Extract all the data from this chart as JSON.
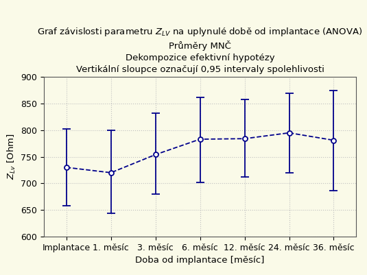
{
  "title_line1": "Graf závislosti parametru $Z_{LV}$ na uplynulé době od implantace (ANOVA)",
  "title_line2": "Průměry MNČ",
  "title_line3": "Dekompozice efektivní hypotézy",
  "title_line4": "Vertikální sloupce označují 0,95 intervaly spolehlivosti",
  "xlabel": "Doba od implantace [měsíc]",
  "ylabel": "$Z_{Lv}$ [Ohm]",
  "categories": [
    "Implantace",
    "1. měsíc",
    "3. měsíc",
    "6. měsíc",
    "12. měsíc",
    "24. měsíc",
    "36. měsíc"
  ],
  "means": [
    730,
    720,
    754,
    783,
    784,
    795,
    781
  ],
  "err_low": [
    72,
    76,
    74,
    81,
    72,
    75,
    95
  ],
  "err_high": [
    72,
    80,
    78,
    79,
    74,
    75,
    93
  ],
  "ylim": [
    600,
    900
  ],
  "yticks": [
    600,
    650,
    700,
    750,
    800,
    850,
    900
  ],
  "line_color": "#00008B",
  "marker_face": "#ffffff",
  "marker_edge": "#00008B",
  "bg_color": "#FAFAE8",
  "grid_color": "#C0C0C0",
  "title_fontsize": 9.5,
  "axis_fontsize": 9.5,
  "tick_fontsize": 9,
  "figsize": [
    5.35,
    4.01
  ],
  "dpi": 100
}
